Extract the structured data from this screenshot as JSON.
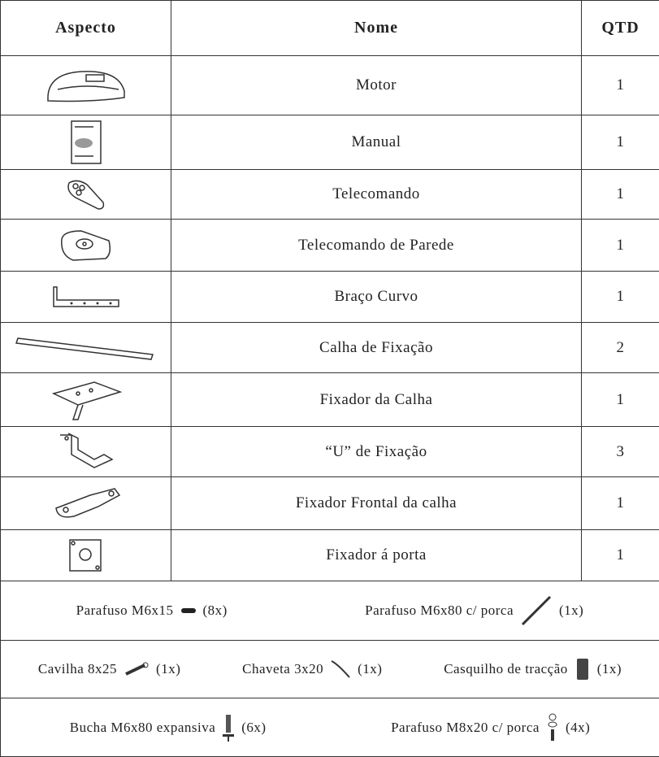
{
  "table": {
    "header": [
      "Aspecto",
      "Nome",
      "QTD"
    ],
    "rows": [
      [
        "Motor",
        1
      ],
      [
        "Manual",
        1
      ],
      [
        "Telecomando",
        1
      ],
      [
        "Telecomando de Parede",
        1
      ],
      [
        "Braço Curvo",
        1
      ],
      [
        "Calha de Fixação",
        2
      ],
      [
        "Fixador da Calha",
        1
      ],
      [
        "“U” de Fixação",
        3
      ],
      [
        "Fixador Frontal da calha",
        1
      ],
      [
        "Fixador á porta",
        1
      ]
    ],
    "bottom_rows": [
      [
        {
          "label": "Parafuso M6x15",
          "count": "(8x)"
        },
        {
          "label": "Parafuso M6x80 c/ porca",
          "count": "(1x)"
        }
      ],
      [
        {
          "label": "Cavilha 8x25",
          "count": "(1x)"
        },
        {
          "label": "Chaveta 3x20",
          "count": "(1x)"
        },
        {
          "label": "Casquilho de tracção",
          "count": "(1x)"
        }
      ],
      [
        {
          "label": "Bucha M6x80 expansiva",
          "count": "(6x)"
        },
        {
          "label": "Parafuso M8x20 c/ porca",
          "count": "(4x)"
        }
      ]
    ]
  }
}
